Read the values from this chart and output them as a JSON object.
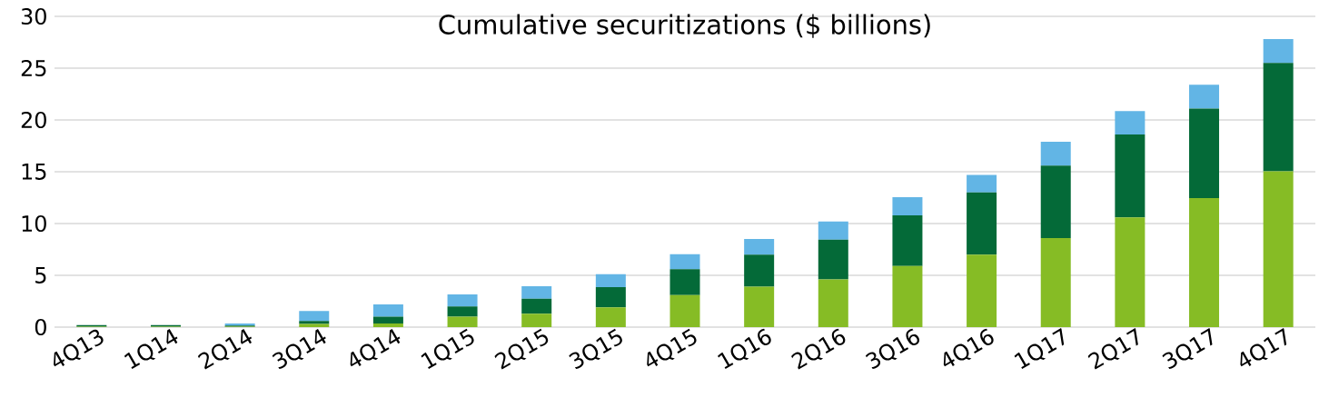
{
  "chart_data": {
    "type": "bar",
    "title": "Cumulative securitizations ($ billions)",
    "stacked": true,
    "grid": "y",
    "categories": [
      "4Q13",
      "1Q14",
      "2Q14",
      "3Q14",
      "4Q14",
      "1Q15",
      "2Q15",
      "3Q15",
      "4Q15",
      "1Q16",
      "2Q16",
      "3Q16",
      "4Q16",
      "1Q17",
      "2Q17",
      "3Q17",
      "4Q17"
    ],
    "series": [
      {
        "color": "#86bc25",
        "values": [
          0.05,
          0.05,
          0.05,
          0.3,
          0.35,
          1.0,
          1.3,
          1.9,
          3.1,
          3.9,
          4.6,
          5.9,
          7.0,
          8.6,
          10.6,
          12.45,
          15.05
        ]
      },
      {
        "color": "#046a38",
        "values": [
          0.15,
          0.15,
          0.1,
          0.3,
          0.65,
          1.0,
          1.45,
          1.95,
          2.5,
          3.1,
          3.85,
          4.9,
          6.0,
          7.0,
          8.0,
          8.65,
          10.45
        ]
      },
      {
        "color": "#62b5e5",
        "values": [
          0.0,
          0.0,
          0.2,
          0.95,
          1.2,
          1.15,
          1.2,
          1.25,
          1.45,
          1.5,
          1.75,
          1.75,
          1.7,
          2.3,
          2.25,
          2.3,
          2.3
        ]
      }
    ],
    "ylim": [
      0,
      30
    ],
    "yticks": [
      0,
      5,
      10,
      15,
      20,
      25,
      30
    ]
  }
}
